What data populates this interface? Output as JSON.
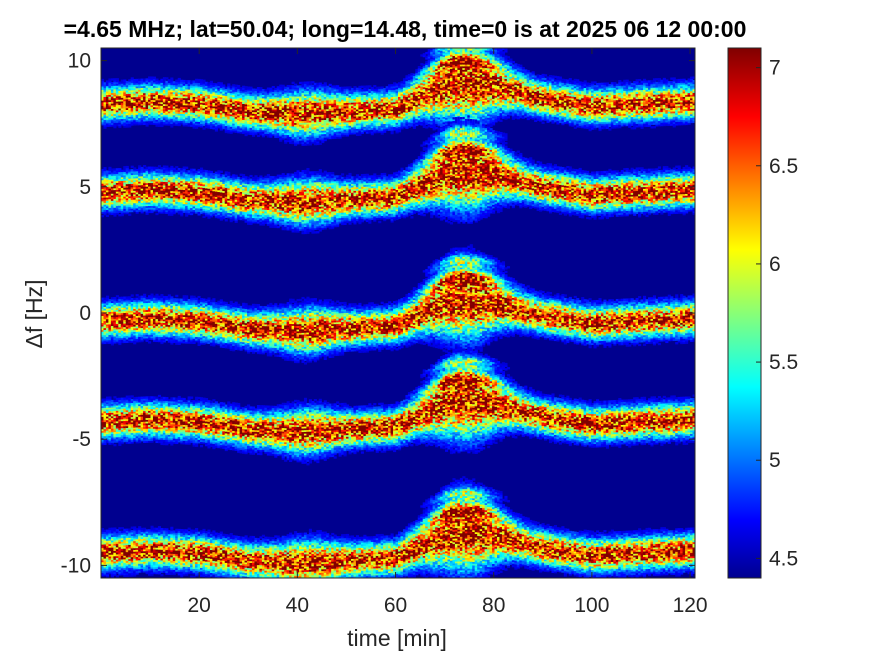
{
  "chart_data": {
    "type": "heatmap",
    "title": "=4.65 MHz;  lat=50.04; long=14.48, time=0 is at 2025 06 12 00:00",
    "xlabel": "time [min]",
    "ylabel": "Δf [Hz]",
    "xlim": [
      0,
      121
    ],
    "ylim": [
      -10.5,
      10.5
    ],
    "x_ticks": [
      20,
      40,
      60,
      80,
      100,
      120
    ],
    "x_tick_labels": [
      "20",
      "40",
      "60",
      "80",
      "100",
      "120"
    ],
    "y_ticks": [
      10,
      5,
      0,
      -5,
      -10
    ],
    "y_tick_labels": [
      "10",
      "5",
      "0",
      "-5",
      "-10"
    ],
    "colormap": "jet",
    "background_color": "#00008f",
    "clim": [
      4.4,
      7.1
    ],
    "colorbar_ticks": [
      7,
      6.5,
      6,
      5.5,
      5,
      4.5
    ],
    "colorbar_tick_labels": [
      "7",
      "6.5",
      "6",
      "5.5",
      "5",
      "4.5"
    ],
    "band_offsets": [
      8.3,
      4.8,
      -0.3,
      -4.3,
      -9.5
    ],
    "trend_time": [
      0,
      10,
      20,
      30,
      40,
      50,
      60,
      70,
      72,
      75,
      80,
      90,
      100,
      110,
      121
    ],
    "trend_shift": [
      0.0,
      0.1,
      0.0,
      -0.3,
      -0.4,
      -0.3,
      -0.2,
      0.7,
      0.8,
      0.8,
      0.7,
      0.2,
      -0.1,
      0.0,
      0.1
    ],
    "grid": false
  }
}
